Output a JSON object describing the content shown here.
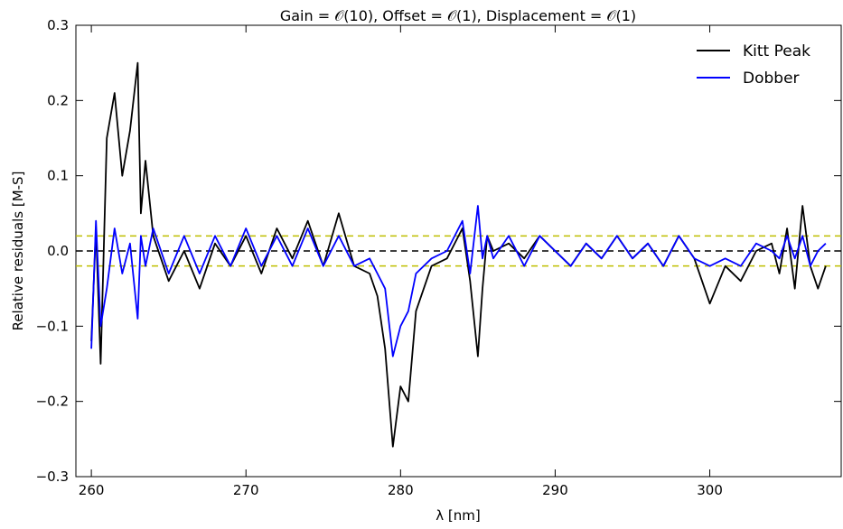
{
  "chart_data": {
    "type": "line",
    "title": "Gain = 𝒪(10), Offset = 𝒪(1), Displacement = 𝒪(1)",
    "xlabel": "λ [nm]",
    "ylabel": "Relative residuals [M-S]",
    "xlim": [
      259,
      308.5
    ],
    "ylim": [
      -0.3,
      0.3
    ],
    "xticks": [
      260,
      270,
      280,
      290,
      300
    ],
    "xtick_labels": [
      "260",
      "270",
      "280",
      "290",
      "300"
    ],
    "yticks": [
      -0.3,
      -0.2,
      -0.1,
      0.0,
      0.1,
      0.2,
      0.3
    ],
    "ytick_labels": [
      "−0.3",
      "−0.2",
      "−0.1",
      "0.0",
      "0.1",
      "0.2",
      "0.3"
    ],
    "grid": false,
    "legend_position": "top-right",
    "reference_lines": [
      {
        "y": 0.0,
        "color": "#000000",
        "style": "dashed"
      },
      {
        "y": 0.02,
        "color": "#bfbf00",
        "style": "dashed"
      },
      {
        "y": -0.02,
        "color": "#bfbf00",
        "style": "dashed"
      }
    ],
    "series": [
      {
        "name": "Kitt Peak",
        "color": "#000000",
        "x": [
          260,
          260.3,
          260.6,
          261,
          261.5,
          262,
          262.5,
          263,
          263.2,
          263.5,
          264,
          265,
          266,
          267,
          268,
          269,
          270,
          271,
          272,
          273,
          274,
          275,
          276,
          277,
          278,
          278.5,
          279,
          279.5,
          280,
          280.5,
          281,
          282,
          283,
          284,
          284.5,
          285,
          285.3,
          285.6,
          286,
          287,
          288,
          289,
          290,
          291,
          292,
          293,
          294,
          295,
          296,
          297,
          298,
          299,
          300,
          301,
          302,
          303,
          304,
          304.5,
          305,
          305.5,
          306,
          306.5,
          307,
          307.5
        ],
        "y": [
          -0.12,
          0.03,
          -0.15,
          0.15,
          0.21,
          0.1,
          0.16,
          0.25,
          0.05,
          0.12,
          0.02,
          -0.04,
          0.0,
          -0.05,
          0.01,
          -0.02,
          0.02,
          -0.03,
          0.03,
          -0.01,
          0.04,
          -0.02,
          0.05,
          -0.02,
          -0.03,
          -0.06,
          -0.13,
          -0.26,
          -0.18,
          -0.2,
          -0.08,
          -0.02,
          -0.01,
          0.03,
          -0.04,
          -0.14,
          -0.05,
          0.02,
          0.0,
          0.01,
          -0.01,
          0.02,
          0.0,
          -0.02,
          0.01,
          -0.01,
          0.02,
          -0.01,
          0.01,
          -0.02,
          0.02,
          -0.01,
          -0.07,
          -0.02,
          -0.04,
          0.0,
          0.01,
          -0.03,
          0.03,
          -0.05,
          0.06,
          -0.02,
          -0.05,
          -0.02
        ]
      },
      {
        "name": "Dobber",
        "color": "#0000ff",
        "x": [
          260,
          260.3,
          260.6,
          261,
          261.5,
          262,
          262.5,
          263,
          263.2,
          263.5,
          264,
          265,
          266,
          267,
          268,
          269,
          270,
          271,
          272,
          273,
          274,
          275,
          276,
          277,
          278,
          278.5,
          279,
          279.5,
          280,
          280.5,
          281,
          282,
          283,
          284,
          284.5,
          285,
          285.3,
          285.6,
          286,
          287,
          288,
          289,
          290,
          291,
          292,
          293,
          294,
          295,
          296,
          297,
          298,
          299,
          300,
          301,
          302,
          303,
          304,
          304.5,
          305,
          305.5,
          306,
          306.5,
          307,
          307.5
        ],
        "y": [
          -0.13,
          0.04,
          -0.1,
          -0.05,
          0.03,
          -0.03,
          0.01,
          -0.09,
          0.02,
          -0.02,
          0.03,
          -0.03,
          0.02,
          -0.03,
          0.02,
          -0.02,
          0.03,
          -0.02,
          0.02,
          -0.02,
          0.03,
          -0.02,
          0.02,
          -0.02,
          -0.01,
          -0.03,
          -0.05,
          -0.14,
          -0.1,
          -0.08,
          -0.03,
          -0.01,
          0.0,
          0.04,
          -0.03,
          0.06,
          -0.01,
          0.02,
          -0.01,
          0.02,
          -0.02,
          0.02,
          0.0,
          -0.02,
          0.01,
          -0.01,
          0.02,
          -0.01,
          0.01,
          -0.02,
          0.02,
          -0.01,
          -0.02,
          -0.01,
          -0.02,
          0.01,
          0.0,
          -0.01,
          0.02,
          -0.01,
          0.02,
          -0.02,
          0.0,
          0.01
        ]
      }
    ]
  }
}
